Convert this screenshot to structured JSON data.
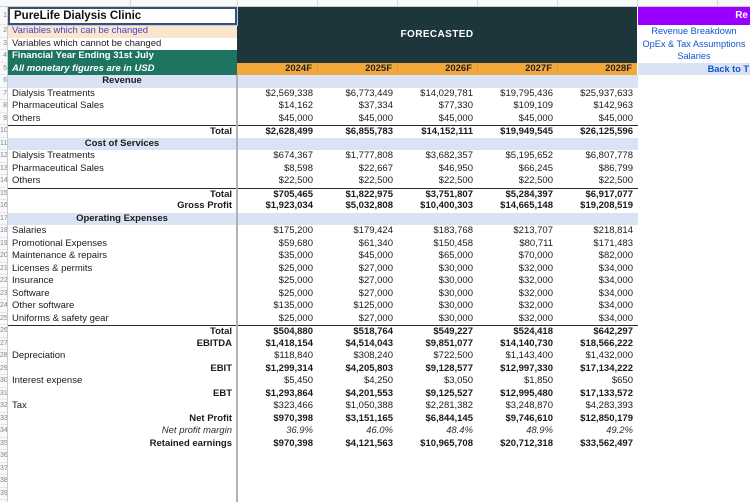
{
  "left_panel": {
    "title": "PureLife Dialysis Clinic",
    "note_changeable": "Variables which can be changed",
    "note_fixed": "Variables which cannot be changed",
    "fiscal_year": "Financial Year Ending 31st July",
    "currency_note": "All monetary figures are in USD"
  },
  "header": {
    "forecast_label": "FORECASTED",
    "years": [
      "2024F",
      "2025F",
      "2026F",
      "2027F",
      "2028F"
    ]
  },
  "nav": {
    "title_partial": "Re",
    "links": [
      "Revenue Breakdown",
      "OpEx & Tax Assumptions",
      "Salaries"
    ],
    "back_link": "Back to T"
  },
  "grid": {
    "total_rows": 41
  },
  "table": {
    "rows": [
      {
        "n": 6,
        "type": "section",
        "label": "Revenue",
        "values": [
          "",
          "",
          "",
          "",
          ""
        ]
      },
      {
        "n": 7,
        "type": "item",
        "label": "Dialysis Treatments",
        "values": [
          "$2,569,338",
          "$6,773,449",
          "$14,029,781",
          "$19,795,436",
          "$25,937,633"
        ]
      },
      {
        "n": 8,
        "type": "item",
        "label": "Pharmaceutical Sales",
        "values": [
          "$14,162",
          "$37,334",
          "$77,330",
          "$109,109",
          "$142,963"
        ]
      },
      {
        "n": 9,
        "type": "item",
        "label": "Others",
        "values": [
          "$45,000",
          "$45,000",
          "$45,000",
          "$45,000",
          "$45,000"
        ]
      },
      {
        "n": 10,
        "type": "total",
        "border_top": true,
        "label": "Total",
        "values": [
          "$2,628,499",
          "$6,855,783",
          "$14,152,111",
          "$19,949,545",
          "$26,125,596"
        ]
      },
      {
        "n": 11,
        "type": "section",
        "label": "Cost of Services",
        "values": [
          "",
          "",
          "",
          "",
          ""
        ]
      },
      {
        "n": 12,
        "type": "item",
        "label": "Dialysis Treatments",
        "values": [
          "$674,367",
          "$1,777,808",
          "$3,682,357",
          "$5,195,652",
          "$6,807,778"
        ]
      },
      {
        "n": 13,
        "type": "item",
        "label": "Pharmaceutical Sales",
        "values": [
          "$8,598",
          "$22,667",
          "$46,950",
          "$66,245",
          "$86,799"
        ]
      },
      {
        "n": 14,
        "type": "item",
        "label": "Others",
        "values": [
          "$22,500",
          "$22,500",
          "$22,500",
          "$22,500",
          "$22,500"
        ]
      },
      {
        "n": 15,
        "type": "total",
        "border_top": true,
        "label": "Total",
        "values": [
          "$705,465",
          "$1,822,975",
          "$3,751,807",
          "$5,284,397",
          "$6,917,077"
        ]
      },
      {
        "n": 16,
        "type": "total",
        "label": "Gross Profit",
        "values": [
          "$1,923,034",
          "$5,032,808",
          "$10,400,303",
          "$14,665,148",
          "$19,208,519"
        ]
      },
      {
        "n": 17,
        "type": "section",
        "label": "Operating Expenses",
        "values": [
          "",
          "",
          "",
          "",
          ""
        ]
      },
      {
        "n": 18,
        "type": "item",
        "label": "Salaries",
        "values": [
          "$175,200",
          "$179,424",
          "$183,768",
          "$213,707",
          "$218,814"
        ]
      },
      {
        "n": 19,
        "type": "item",
        "label": "Promotional Expenses",
        "values": [
          "$59,680",
          "$61,340",
          "$150,458",
          "$80,711",
          "$171,483"
        ]
      },
      {
        "n": 20,
        "type": "item",
        "label": "Maintenance & repairs",
        "values": [
          "$35,000",
          "$45,000",
          "$65,000",
          "$70,000",
          "$82,000"
        ]
      },
      {
        "n": 21,
        "type": "item",
        "label": "Licenses & permits",
        "values": [
          "$25,000",
          "$27,000",
          "$30,000",
          "$32,000",
          "$34,000"
        ]
      },
      {
        "n": 22,
        "type": "item",
        "label": "Insurance",
        "values": [
          "$25,000",
          "$27,000",
          "$30,000",
          "$32,000",
          "$34,000"
        ]
      },
      {
        "n": 23,
        "type": "item",
        "label": "Software",
        "values": [
          "$25,000",
          "$27,000",
          "$30,000",
          "$32,000",
          "$34,000"
        ]
      },
      {
        "n": 24,
        "type": "item",
        "label": "Other software",
        "values": [
          "$135,000",
          "$125,000",
          "$30,000",
          "$32,000",
          "$34,000"
        ]
      },
      {
        "n": 25,
        "type": "item",
        "label": "Uniforms & safety gear",
        "values": [
          "$25,000",
          "$27,000",
          "$30,000",
          "$32,000",
          "$34,000"
        ]
      },
      {
        "n": 26,
        "type": "total",
        "border_top": true,
        "label": "Total",
        "values": [
          "$504,880",
          "$518,764",
          "$549,227",
          "$524,418",
          "$642,297"
        ]
      },
      {
        "n": 27,
        "type": "total",
        "label": "EBITDA",
        "values": [
          "$1,418,154",
          "$4,514,043",
          "$9,851,077",
          "$14,140,730",
          "$18,566,222"
        ]
      },
      {
        "n": 28,
        "type": "item",
        "label": "Depreciation",
        "values": [
          "$118,840",
          "$308,240",
          "$722,500",
          "$1,143,400",
          "$1,432,000"
        ]
      },
      {
        "n": 29,
        "type": "total",
        "label": "EBIT",
        "values": [
          "$1,299,314",
          "$4,205,803",
          "$9,128,577",
          "$12,997,330",
          "$17,134,222"
        ]
      },
      {
        "n": 30,
        "type": "item",
        "label": "Interest expense",
        "values": [
          "$5,450",
          "$4,250",
          "$3,050",
          "$1,850",
          "$650"
        ]
      },
      {
        "n": 31,
        "type": "total",
        "label": "EBT",
        "values": [
          "$1,293,864",
          "$4,201,553",
          "$9,125,527",
          "$12,995,480",
          "$17,133,572"
        ]
      },
      {
        "n": 32,
        "type": "item",
        "label": "Tax",
        "values": [
          "$323,466",
          "$1,050,388",
          "$2,281,382",
          "$3,248,870",
          "$4,283,393"
        ]
      },
      {
        "n": 33,
        "type": "total",
        "label": "Net Profit",
        "values": [
          "$970,398",
          "$3,151,165",
          "$6,844,145",
          "$9,746,610",
          "$12,850,179"
        ]
      },
      {
        "n": 34,
        "type": "margin",
        "label": "Net profit margin",
        "values": [
          "36.9%",
          "46.0%",
          "48.4%",
          "48.9%",
          "49.2%"
        ]
      },
      {
        "n": 35,
        "type": "total",
        "label": "Retained earnings",
        "values": [
          "$970,398",
          "$4,121,563",
          "$10,965,708",
          "$20,712,318",
          "$33,562,497"
        ]
      }
    ]
  },
  "colors": {
    "forecast_banner": "#1c363c",
    "year_band": "#f0a83c",
    "teal_info": "#1d7460",
    "peach_note": "#fce5cd",
    "section_band": "#dae3f3",
    "nav_purple": "#9900ff",
    "link_blue": "#1155cc",
    "changeable_text": "#4444d2"
  }
}
